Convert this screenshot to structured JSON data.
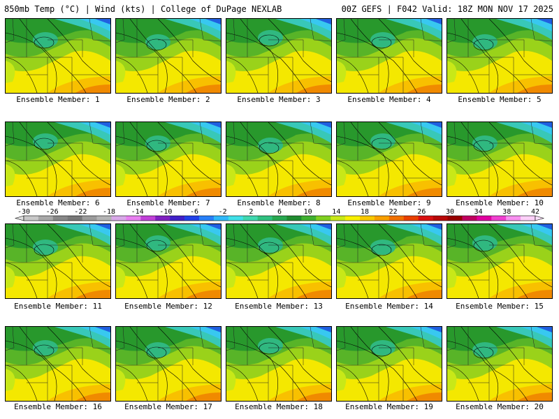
{
  "header": {
    "left": "850mb Temp (°C) | Wind (kts) | College of DuPage NEXLAB",
    "right": "00Z GEFS | F042 Valid: 18Z MON NOV 17 2025"
  },
  "members": [
    {
      "label": "Ensemble Member: 1"
    },
    {
      "label": "Ensemble Member: 2"
    },
    {
      "label": "Ensemble Member: 3"
    },
    {
      "label": "Ensemble Member: 4"
    },
    {
      "label": "Ensemble Member: 5"
    },
    {
      "label": "Ensemble Member: 6"
    },
    {
      "label": "Ensemble Member: 7"
    },
    {
      "label": "Ensemble Member: 8"
    },
    {
      "label": "Ensemble Member: 9"
    },
    {
      "label": "Ensemble Member: 10"
    },
    {
      "label": "Ensemble Member: 11"
    },
    {
      "label": "Ensemble Member: 12"
    },
    {
      "label": "Ensemble Member: 13"
    },
    {
      "label": "Ensemble Member: 14"
    },
    {
      "label": "Ensemble Member: 15"
    },
    {
      "label": "Ensemble Member: 16"
    },
    {
      "label": "Ensemble Member: 17"
    },
    {
      "label": "Ensemble Member: 18"
    },
    {
      "label": "Ensemble Member: 19"
    },
    {
      "label": "Ensemble Member: 20"
    }
  ],
  "colorbar": {
    "labels": [
      "-30",
      "-26",
      "-22",
      "-18",
      "-14",
      "-10",
      "-6",
      "-2",
      "2",
      "6",
      "10",
      "14",
      "18",
      "22",
      "26",
      "30",
      "34",
      "38",
      "42"
    ],
    "colors": [
      "#c8c8c8",
      "#a8a8a8",
      "#888888",
      "#787878",
      "#9c9c9c",
      "#b4b4b4",
      "#d8a8e8",
      "#e880f0",
      "#c040d8",
      "#8020c0",
      "#4020c8",
      "#2040e8",
      "#2880f8",
      "#30b8f8",
      "#40e0e8",
      "#40d8b0",
      "#30c080",
      "#28a850",
      "#208c30",
      "#40b030",
      "#80d020",
      "#c8e818",
      "#f8f000",
      "#f8c800",
      "#f8a000",
      "#f07000",
      "#e84000",
      "#d81010",
      "#b80808",
      "#980000",
      "#c00060",
      "#e000a0",
      "#f040d0",
      "#f890f0",
      "#fcd0f8"
    ]
  }
}
